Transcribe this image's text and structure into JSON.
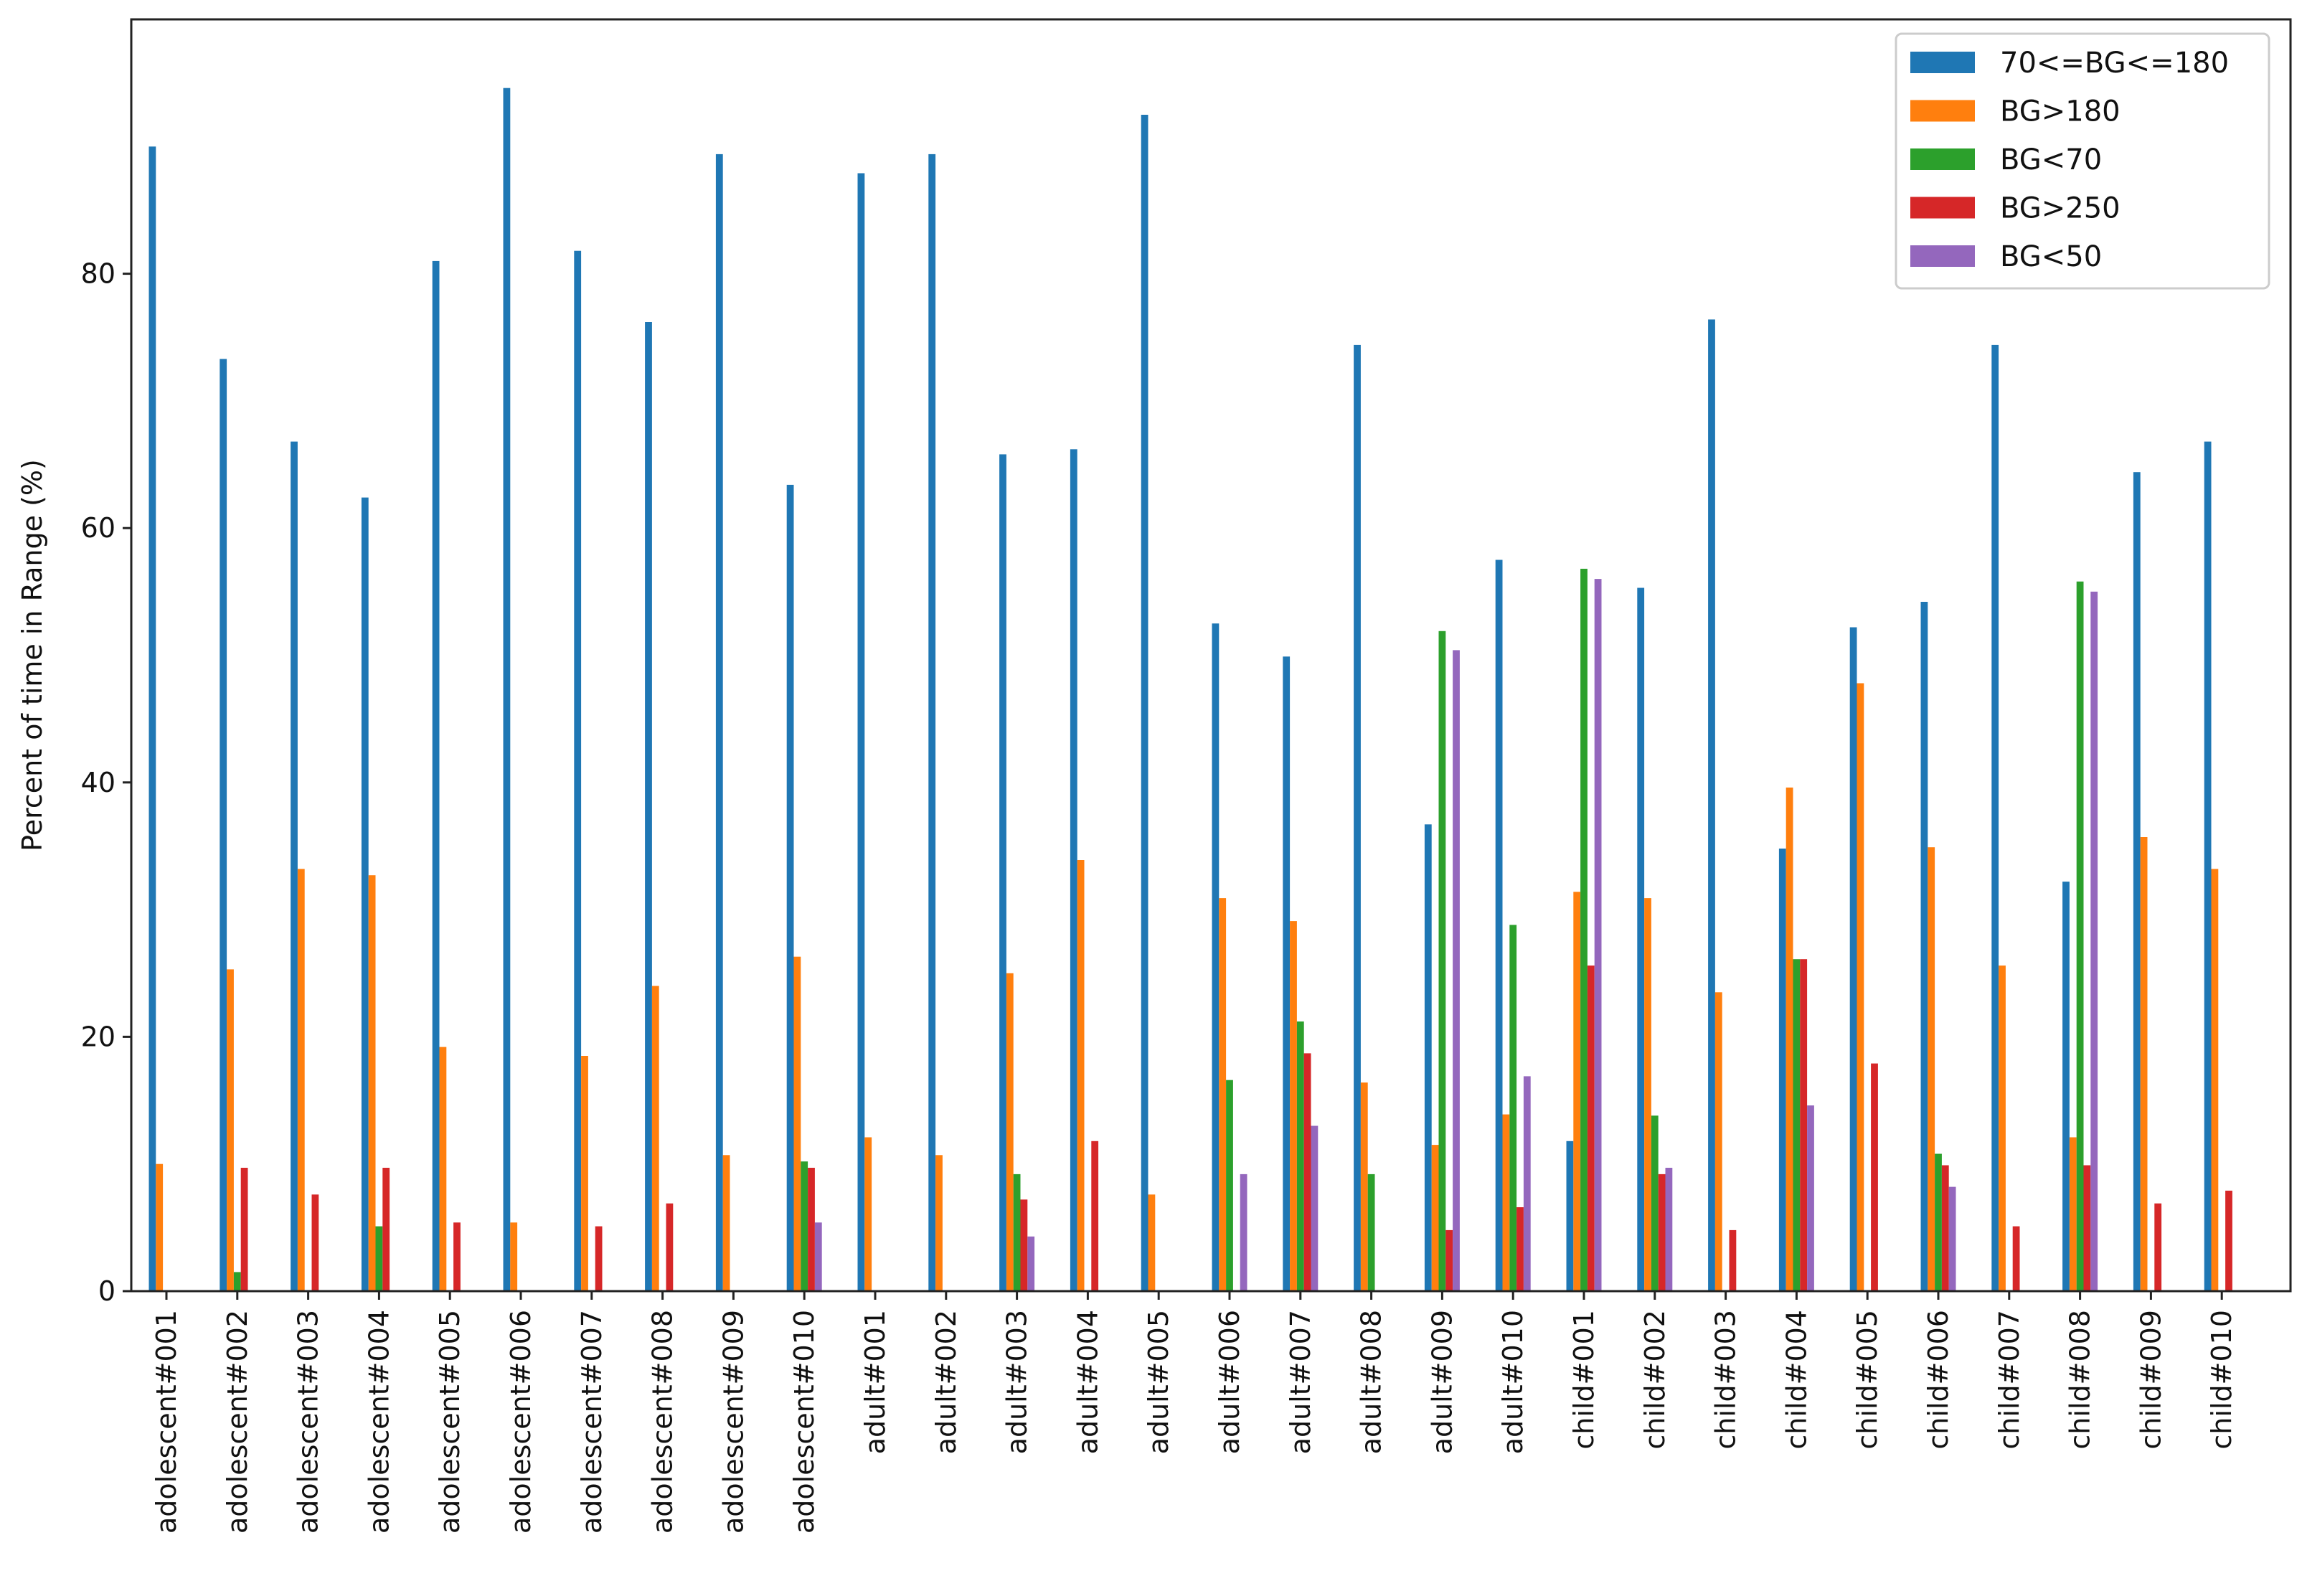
{
  "chart_data": {
    "type": "bar",
    "title": "",
    "xlabel": "",
    "ylabel": "Percent of time in Range (%)",
    "ylim": [
      0,
      100
    ],
    "yticks": [
      0,
      20,
      40,
      60,
      80
    ],
    "grid": false,
    "legend_position": "top-right",
    "categories": [
      "adolescent#001",
      "adolescent#002",
      "adolescent#003",
      "adolescent#004",
      "adolescent#005",
      "adolescent#006",
      "adolescent#007",
      "adolescent#008",
      "adolescent#009",
      "adolescent#010",
      "adult#001",
      "adult#002",
      "adult#003",
      "adult#004",
      "adult#005",
      "adult#006",
      "adult#007",
      "adult#008",
      "adult#009",
      "adult#010",
      "child#001",
      "child#002",
      "child#003",
      "child#004",
      "child#005",
      "child#006",
      "child#007",
      "child#008",
      "child#009",
      "child#010"
    ],
    "series": [
      {
        "name": "70<=BG<=180",
        "color": "#1f77b4",
        "values": [
          90.0,
          73.3,
          66.8,
          62.4,
          81.0,
          94.6,
          81.8,
          76.2,
          89.4,
          63.4,
          87.9,
          89.4,
          65.8,
          66.2,
          92.5,
          52.5,
          49.9,
          74.4,
          36.7,
          57.5,
          11.8,
          55.3,
          76.4,
          34.8,
          52.2,
          54.2,
          74.4,
          32.2,
          64.4,
          66.8
        ]
      },
      {
        "name": "BG>180",
        "color": "#ff7f0e",
        "values": [
          10.0,
          25.3,
          33.2,
          32.7,
          19.2,
          5.4,
          18.5,
          24.0,
          10.7,
          26.3,
          12.1,
          10.7,
          25.0,
          33.9,
          7.6,
          30.9,
          29.1,
          16.4,
          11.5,
          13.9,
          31.4,
          30.9,
          23.5,
          39.6,
          47.8,
          34.9,
          25.6,
          12.1,
          35.7,
          33.2
        ]
      },
      {
        "name": "BG<70",
        "color": "#2ca02c",
        "values": [
          0,
          1.5,
          0,
          5.1,
          0,
          0,
          0,
          0,
          0,
          10.2,
          0,
          0,
          9.2,
          0,
          0,
          16.6,
          21.2,
          9.2,
          51.9,
          28.8,
          56.8,
          13.8,
          0,
          26.1,
          0,
          10.8,
          0,
          55.8,
          0,
          0
        ]
      },
      {
        "name": "BG>250",
        "color": "#d62728",
        "values": [
          0,
          9.7,
          7.6,
          9.7,
          5.4,
          0,
          5.1,
          6.9,
          0,
          9.7,
          0,
          0,
          7.2,
          11.8,
          0,
          0,
          18.7,
          0,
          4.8,
          6.6,
          25.6,
          9.2,
          4.8,
          26.1,
          17.9,
          9.9,
          5.1,
          9.9,
          6.9,
          7.9
        ]
      },
      {
        "name": "BG<50",
        "color": "#9467bd",
        "values": [
          0,
          0,
          0,
          0,
          0,
          0,
          0,
          0,
          0,
          5.4,
          0,
          0,
          4.3,
          0,
          0,
          9.2,
          13.0,
          0,
          50.4,
          16.9,
          56.0,
          9.7,
          0,
          14.6,
          0,
          8.2,
          0,
          55.0,
          0,
          0
        ]
      }
    ]
  }
}
